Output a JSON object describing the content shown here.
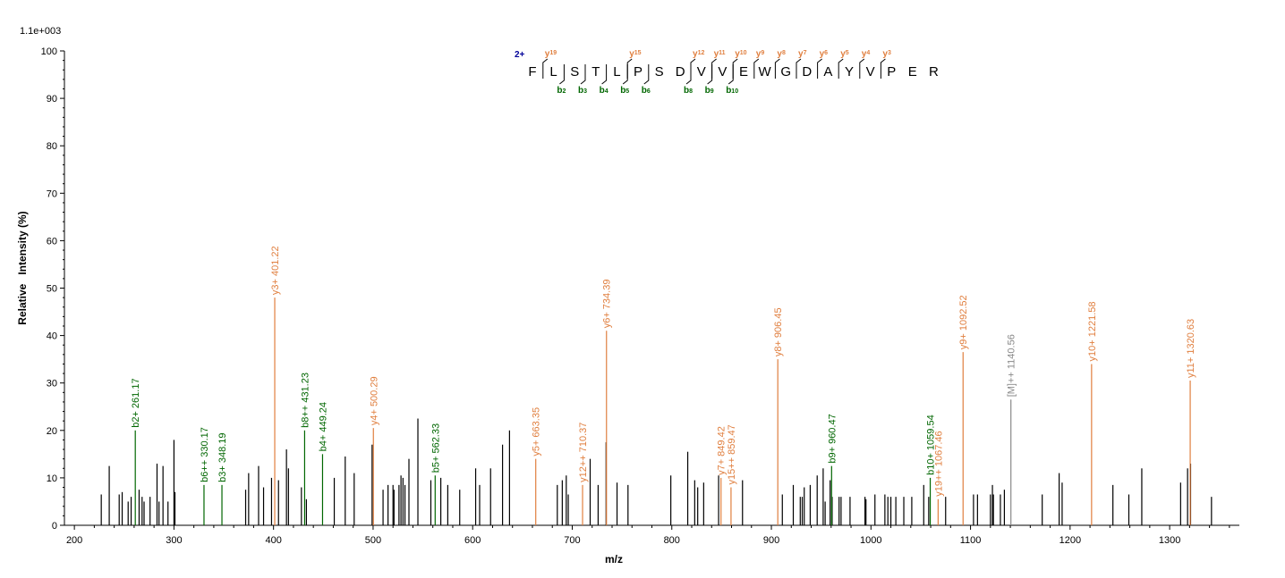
{
  "chart_data": {
    "type": "bar",
    "max_intensity_label": "1.1e+003",
    "xlabel": "m/z",
    "ylabel": "Relative   Intensity (%)",
    "xlim": [
      190,
      1370
    ],
    "ylim": [
      0,
      100
    ],
    "x_ticks": [
      200,
      300,
      400,
      500,
      600,
      700,
      800,
      900,
      1000,
      1100,
      1200,
      1300
    ],
    "y_ticks": [
      0,
      10,
      20,
      30,
      40,
      50,
      60,
      70,
      80,
      90,
      100
    ],
    "colors": {
      "b_ion": "#006600",
      "y_ion": "#e07f3f",
      "precursor": "#888888",
      "unannotated": "#000000",
      "charge": "#000099"
    },
    "annotated_peaks": [
      {
        "mz": 261.17,
        "intensity": 20,
        "label": "b2+ 261.17",
        "type": "b"
      },
      {
        "mz": 330.17,
        "intensity": 8.5,
        "label": "b6++ 330.17",
        "type": "b"
      },
      {
        "mz": 348.19,
        "intensity": 8.5,
        "label": "b3+ 348.19",
        "type": "b"
      },
      {
        "mz": 401.22,
        "intensity": 48,
        "label": "y3+ 401.22",
        "type": "y"
      },
      {
        "mz": 431.23,
        "intensity": 20,
        "label": "b8++ 431.23",
        "type": "b"
      },
      {
        "mz": 449.24,
        "intensity": 15,
        "label": "b4+ 449.24",
        "type": "b"
      },
      {
        "mz": 500.29,
        "intensity": 20.5,
        "label": "y4+ 500.29",
        "type": "y"
      },
      {
        "mz": 562.33,
        "intensity": 10.5,
        "label": "b5+ 562.33",
        "type": "b"
      },
      {
        "mz": 663.35,
        "intensity": 14,
        "label": "y5+ 663.35",
        "type": "y"
      },
      {
        "mz": 710.37,
        "intensity": 8.5,
        "label": "y12++ 710.37",
        "type": "y"
      },
      {
        "mz": 734.39,
        "intensity": 41,
        "label": "y6+ 734.39",
        "type": "y"
      },
      {
        "mz": 849.42,
        "intensity": 10,
        "label": "y7+ 849.42",
        "type": "y"
      },
      {
        "mz": 859.47,
        "intensity": 8,
        "label": "y15++ 859.47",
        "type": "y"
      },
      {
        "mz": 906.45,
        "intensity": 35,
        "label": "y8+ 906.45",
        "type": "y"
      },
      {
        "mz": 960.47,
        "intensity": 12.5,
        "label": "b9+ 960.47",
        "type": "b"
      },
      {
        "mz": 1059.54,
        "intensity": 10,
        "label": "b10+ 1059.54",
        "type": "b"
      },
      {
        "mz": 1067.46,
        "intensity": 5.5,
        "label": "y19++ 1067.46",
        "type": "y"
      },
      {
        "mz": 1092.52,
        "intensity": 36.5,
        "label": "y9+ 1092.52",
        "type": "y"
      },
      {
        "mz": 1140.56,
        "intensity": 26.5,
        "label": "[M]++ 1140.56",
        "type": "precursor"
      },
      {
        "mz": 1221.58,
        "intensity": 34,
        "label": "y10+ 1221.58",
        "type": "y"
      },
      {
        "mz": 1320.63,
        "intensity": 30.5,
        "label": "y11+ 1320.63",
        "type": "y"
      }
    ],
    "unannotated_peaks": [
      [
        227,
        6.5
      ],
      [
        235,
        12.5
      ],
      [
        245,
        6.5
      ],
      [
        248,
        7
      ],
      [
        254,
        5
      ],
      [
        257,
        6
      ],
      [
        265,
        7.5
      ],
      [
        268,
        6
      ],
      [
        270,
        5
      ],
      [
        276,
        6
      ],
      [
        283,
        13
      ],
      [
        285,
        5
      ],
      [
        289,
        12.5
      ],
      [
        294,
        5
      ],
      [
        300,
        18
      ],
      [
        301,
        7
      ],
      [
        372,
        7.5
      ],
      [
        375,
        11
      ],
      [
        385,
        12.5
      ],
      [
        390,
        8
      ],
      [
        398,
        10
      ],
      [
        405,
        9.5
      ],
      [
        413,
        16
      ],
      [
        415,
        12
      ],
      [
        428,
        8
      ],
      [
        433,
        5.5
      ],
      [
        461,
        10
      ],
      [
        472,
        14.5
      ],
      [
        481,
        11
      ],
      [
        499,
        17
      ],
      [
        510,
        7.5
      ],
      [
        515,
        8.5
      ],
      [
        520,
        8.5
      ],
      [
        521,
        7.5
      ],
      [
        526,
        8.5
      ],
      [
        528,
        10.5
      ],
      [
        530,
        10
      ],
      [
        532,
        8.5
      ],
      [
        536,
        14
      ],
      [
        545,
        22.5
      ],
      [
        558,
        9.5
      ],
      [
        568,
        10
      ],
      [
        575,
        8.5
      ],
      [
        587,
        7.5
      ],
      [
        603,
        12
      ],
      [
        607,
        8.5
      ],
      [
        618,
        12
      ],
      [
        630,
        17
      ],
      [
        637,
        20
      ],
      [
        685,
        8.5
      ],
      [
        690,
        9.5
      ],
      [
        694,
        10.5
      ],
      [
        696,
        6.5
      ],
      [
        718,
        14
      ],
      [
        726,
        8.5
      ],
      [
        734,
        17.5
      ],
      [
        745,
        9
      ],
      [
        756,
        8.5
      ],
      [
        799,
        10.5
      ],
      [
        816,
        15.5
      ],
      [
        823,
        9.5
      ],
      [
        826,
        8
      ],
      [
        832,
        9
      ],
      [
        847,
        10.5
      ],
      [
        871,
        9.5
      ],
      [
        911,
        6.5
      ],
      [
        922,
        8.5
      ],
      [
        929,
        6
      ],
      [
        931,
        6
      ],
      [
        933,
        8
      ],
      [
        939,
        8.5
      ],
      [
        946,
        10.5
      ],
      [
        952,
        12
      ],
      [
        954,
        5
      ],
      [
        959,
        9.5
      ],
      [
        961,
        6
      ],
      [
        968,
        6
      ],
      [
        970,
        6
      ],
      [
        979,
        6
      ],
      [
        994,
        6
      ],
      [
        995,
        5.5
      ],
      [
        1004,
        6.5
      ],
      [
        1014,
        6.5
      ],
      [
        1017,
        6
      ],
      [
        1020,
        6
      ],
      [
        1025,
        6
      ],
      [
        1033,
        6
      ],
      [
        1041,
        6
      ],
      [
        1053,
        8.5
      ],
      [
        1058,
        6
      ],
      [
        1075,
        6
      ],
      [
        1103,
        6.5
      ],
      [
        1107,
        6.5
      ],
      [
        1120,
        6.5
      ],
      [
        1122,
        8.5
      ],
      [
        1123,
        6.5
      ],
      [
        1130,
        6.5
      ],
      [
        1134,
        7.5
      ],
      [
        1172,
        6.5
      ],
      [
        1189,
        11
      ],
      [
        1192,
        9
      ],
      [
        1243,
        8.5
      ],
      [
        1259,
        6.5
      ],
      [
        1272,
        12
      ],
      [
        1311,
        9
      ],
      [
        1318,
        12
      ],
      [
        1321,
        13
      ],
      [
        1342,
        6
      ]
    ],
    "sequence": {
      "charge_label": "2+",
      "residues": [
        "F",
        "L",
        "S",
        "T",
        "L",
        "P",
        "S",
        "D",
        "V",
        "V",
        "E",
        "W",
        "G",
        "D",
        "A",
        "Y",
        "V",
        "P",
        "E",
        "R"
      ],
      "y_ions": [
        {
          "after": 1,
          "label": "19"
        },
        {
          "after": 5,
          "label": "15"
        },
        {
          "after": 8,
          "label": "12"
        },
        {
          "after": 9,
          "label": "11"
        },
        {
          "after": 10,
          "label": "10"
        },
        {
          "after": 11,
          "label": "9"
        },
        {
          "after": 12,
          "label": "8"
        },
        {
          "after": 13,
          "label": "7"
        },
        {
          "after": 14,
          "label": "6"
        },
        {
          "after": 15,
          "label": "5"
        },
        {
          "after": 16,
          "label": "4"
        },
        {
          "after": 17,
          "label": "3"
        }
      ],
      "b_ions": [
        {
          "after": 2,
          "label": "2"
        },
        {
          "after": 3,
          "label": "3"
        },
        {
          "after": 4,
          "label": "4"
        },
        {
          "after": 5,
          "label": "5"
        },
        {
          "after": 6,
          "label": "6"
        },
        {
          "after": 8,
          "label": "8"
        },
        {
          "after": 9,
          "label": "9"
        },
        {
          "after": 10,
          "label": "10"
        }
      ]
    }
  }
}
